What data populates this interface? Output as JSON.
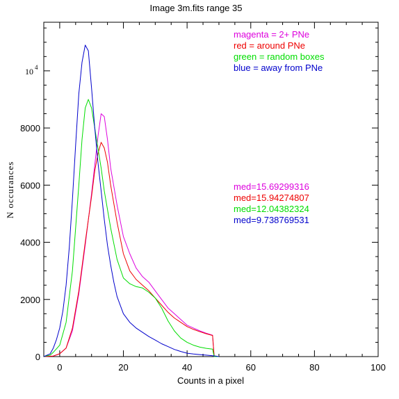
{
  "chart_data": {
    "type": "line",
    "title": "Image 3m.fits   range 35",
    "xlabel": "Counts in a pixel",
    "ylabel": "N occurances",
    "xlim": [
      -5,
      100
    ],
    "ylim": [
      0,
      11700
    ],
    "x_ticks": [
      0,
      20,
      40,
      60,
      80,
      100
    ],
    "y_ticks": [
      0,
      2000,
      4000,
      6000,
      8000
    ],
    "y_top_label_base": "10",
    "y_top_label_exp": "4",
    "y_top_label_value": 10000,
    "grid": false,
    "legend_position": "top-right",
    "legend": [
      {
        "text": "magenta = 2+ PNe",
        "color": "#dd00dd"
      },
      {
        "text": "red = around PNe",
        "color": "#ee0000"
      },
      {
        "text": "green = random boxes",
        "color": "#00dd00"
      },
      {
        "text": "blue = away from PNe",
        "color": "#0000cc"
      }
    ],
    "medians": [
      {
        "text": "med=15.69299316",
        "color": "#dd00dd"
      },
      {
        "text": "med=15.94274807",
        "color": "#ee0000"
      },
      {
        "text": "med=12.04382324",
        "color": "#00dd00"
      },
      {
        "text": "med=9.738769531",
        "color": "#0000cc"
      }
    ],
    "series": [
      {
        "color": "#dd00dd",
        "x": [
          -5,
          -2,
          0,
          2,
          4,
          6,
          8,
          10,
          11,
          12,
          13,
          14,
          15,
          16,
          18,
          20,
          22,
          24,
          26,
          28,
          30,
          32,
          34,
          36,
          38,
          40,
          42,
          44,
          46,
          48,
          48.5,
          49,
          50
        ],
        "y": [
          0,
          20,
          100,
          300,
          900,
          2200,
          3900,
          5700,
          6700,
          7700,
          8500,
          8400,
          7600,
          6600,
          5300,
          4200,
          3600,
          3100,
          2800,
          2600,
          2300,
          2000,
          1700,
          1500,
          1300,
          1100,
          1000,
          900,
          820,
          750,
          0,
          0,
          0
        ]
      },
      {
        "color": "#ee0000",
        "x": [
          -5,
          -2,
          0,
          2,
          4,
          6,
          8,
          10,
          11,
          12,
          13,
          14,
          15,
          16,
          18,
          20,
          22,
          24,
          26,
          28,
          30,
          32,
          34,
          36,
          38,
          40,
          42,
          44,
          46,
          48,
          48.5,
          49,
          50
        ],
        "y": [
          0,
          20,
          100,
          300,
          1000,
          2300,
          4000,
          5600,
          6500,
          7100,
          7500,
          7300,
          6800,
          6000,
          4700,
          3600,
          3000,
          2700,
          2500,
          2300,
          2050,
          1800,
          1550,
          1350,
          1200,
          1050,
          950,
          870,
          800,
          740,
          0,
          0,
          0
        ]
      },
      {
        "color": "#00dd00",
        "x": [
          -5,
          -3,
          -2,
          0,
          2,
          4,
          6,
          7,
          8,
          9,
          10,
          11,
          12,
          13,
          14,
          16,
          18,
          20,
          22,
          24,
          26,
          28,
          30,
          32,
          34,
          36,
          38,
          40,
          42,
          44,
          46,
          48,
          48.5,
          49,
          50
        ],
        "y": [
          0,
          50,
          150,
          400,
          1200,
          3000,
          6000,
          7600,
          8700,
          9000,
          8700,
          8000,
          7300,
          6600,
          5800,
          4500,
          3400,
          2750,
          2550,
          2450,
          2400,
          2250,
          2050,
          1700,
          1250,
          900,
          650,
          500,
          400,
          330,
          290,
          260,
          0,
          0,
          0
        ]
      },
      {
        "color": "#0000cc",
        "x": [
          -5,
          -3,
          -2,
          -1,
          0,
          1,
          2,
          3,
          4,
          5,
          6,
          7,
          8,
          9,
          10,
          11,
          12,
          13,
          14,
          15,
          16,
          17,
          18,
          20,
          22,
          24,
          26,
          28,
          30,
          32,
          34,
          36,
          38,
          40,
          42,
          44,
          46,
          48,
          49,
          50
        ],
        "y": [
          0,
          100,
          300,
          600,
          1000,
          1600,
          2500,
          3800,
          5500,
          7400,
          9200,
          10300,
          10900,
          10700,
          9400,
          8000,
          6800,
          5800,
          4800,
          3900,
          3200,
          2600,
          2100,
          1500,
          1200,
          1000,
          850,
          700,
          580,
          450,
          350,
          250,
          180,
          120,
          90,
          70,
          50,
          30,
          20,
          0
        ]
      }
    ]
  }
}
